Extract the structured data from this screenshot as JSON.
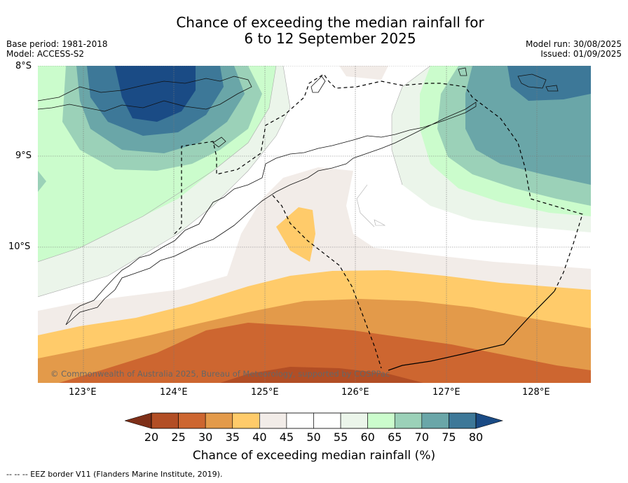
{
  "title_line1": "Chance of exceeding the median rainfall for",
  "title_line2": "6 to 12 September 2025",
  "meta_left": {
    "base_period": "Base period: 1981-2018",
    "model": "Model: ACCESS-S2"
  },
  "meta_right": {
    "model_run": "Model run: 30/08/2025",
    "issued": "Issued: 01/09/2025"
  },
  "lat_labels": [
    "8°S",
    "9°S",
    "10°S"
  ],
  "lon_labels": [
    "123°E",
    "124°E",
    "125°E",
    "126°E",
    "127°E",
    "128°E"
  ],
  "copyright": "© Commonwealth of Australia 2025, Bureau of Meteorology, supported by COSPPac",
  "colorbar": {
    "ticks": [
      "20",
      "25",
      "30",
      "35",
      "40",
      "45",
      "50",
      "55",
      "60",
      "65",
      "70",
      "75",
      "80"
    ],
    "colors": [
      "#b24e25",
      "#cd6630",
      "#e39a4a",
      "#ffcb6a",
      "#f2ece8",
      "#ffffff",
      "#ffffff",
      "#ebf5ea",
      "#cbfccc",
      "#9bd1b8",
      "#6aa6a8",
      "#3d7898"
    ],
    "under_color": "#7e2f18",
    "over_color": "#1a4b85",
    "title": "Chance of exceeding median rainfall (%)"
  },
  "footnote": "--  --  -- EEZ border V11 (Flanders Marine Institute, 2019)."
}
